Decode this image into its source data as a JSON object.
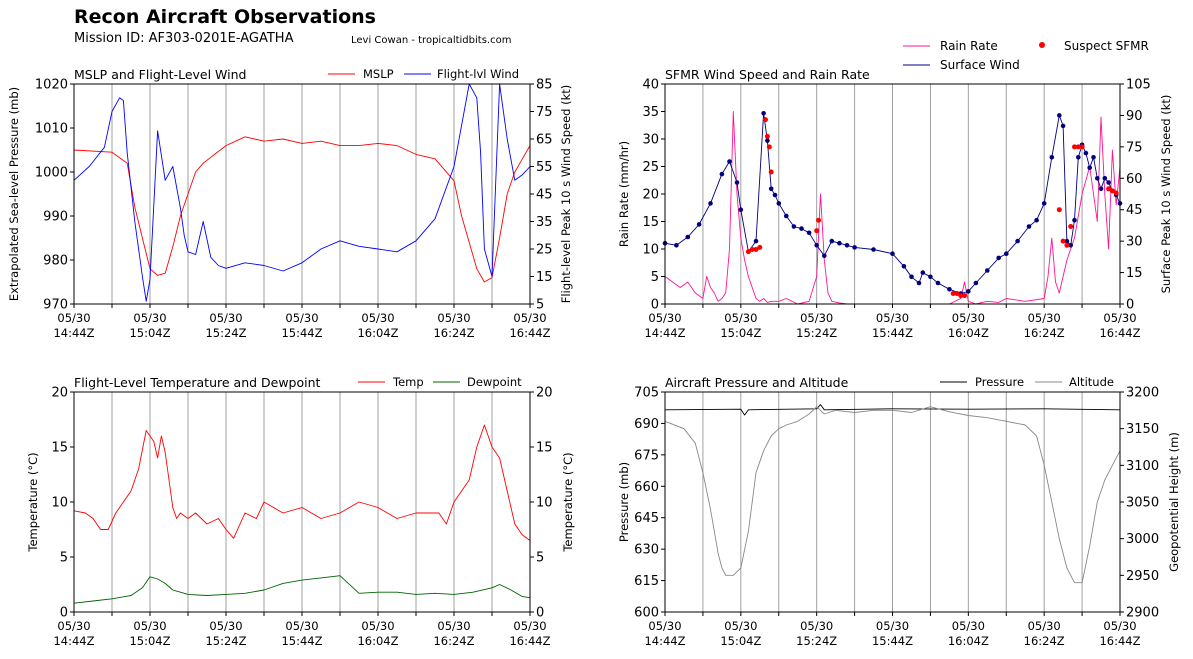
{
  "header": {
    "title": "Recon Aircraft Observations",
    "mission": "Mission ID: AF303-0201E-AGATHA",
    "credit": "Levi Cowan - tropicaltidbits.com"
  },
  "time_ticks": [
    {
      "date": "05/30",
      "time": "14:44Z"
    },
    {
      "date": "05/30",
      "time": "15:04Z"
    },
    {
      "date": "05/30",
      "time": "15:24Z"
    },
    {
      "date": "05/30",
      "time": "15:44Z"
    },
    {
      "date": "05/30",
      "time": "16:04Z"
    },
    {
      "date": "05/30",
      "time": "16:24Z"
    },
    {
      "date": "05/30",
      "time": "16:44Z"
    }
  ],
  "top_legend": {
    "rain": "Rain Rate",
    "surface": "Surface Wind",
    "suspect": "Suspect SFMR"
  },
  "colors": {
    "mslp": "#ff0000",
    "wind": "#0000ff",
    "rain": "#ff1493",
    "surface": "#000080",
    "suspect": "#ff0000",
    "temp": "#ff0000",
    "dewpoint": "#006400",
    "pressure": "#000000",
    "altitude": "#888888",
    "grid": "#a0a0a0"
  },
  "chart_data": [
    {
      "id": "mslp_wind",
      "type": "line",
      "title": "MSLP and Flight-Level Wind",
      "x_range": [
        "14:44Z",
        "16:44Z"
      ],
      "ylabel_left": "Extrapolated Sea-level Pressure (mb)",
      "ylabel_right": "Flight-level Peak 10 s Wind Speed (kt)",
      "ylim_left": [
        970,
        1020
      ],
      "ylim_right": [
        5,
        85
      ],
      "yticks_left": [
        "970",
        "980",
        "990",
        "1000",
        "1010",
        "1020"
      ],
      "yticks_right": [
        "5",
        "15",
        "25",
        "35",
        "45",
        "55",
        "65",
        "75",
        "85"
      ],
      "grid": "vertical",
      "legend": "top-right",
      "series": [
        {
          "name": "MSLP",
          "axis": "left",
          "x": [
            0,
            10,
            14,
            16,
            18,
            20,
            22,
            24,
            26,
            28,
            30,
            32,
            34,
            37,
            40,
            45,
            50,
            55,
            60,
            65,
            70,
            75,
            80,
            85,
            90,
            95,
            100,
            102,
            104,
            106,
            108,
            110,
            112,
            114,
            116,
            118,
            120
          ],
          "y": [
            1005,
            1004.5,
            1002,
            992,
            985,
            978,
            976.5,
            977,
            983,
            990,
            995,
            1000,
            1002,
            1004,
            1006,
            1008,
            1007,
            1007.5,
            1006.5,
            1007,
            1006,
            1006,
            1006.5,
            1006,
            1004,
            1003,
            998,
            990,
            984,
            978,
            975,
            976,
            985,
            995,
            1000,
            1003,
            1006
          ]
        },
        {
          "name": "Flight-lvl Wind",
          "axis": "right",
          "x": [
            0,
            4,
            8,
            10,
            12,
            13,
            14,
            16,
            18,
            19,
            20,
            22,
            24,
            26,
            28,
            29,
            30,
            32,
            34,
            36,
            38,
            40,
            45,
            50,
            55,
            60,
            65,
            70,
            75,
            80,
            85,
            90,
            95,
            100,
            102,
            104,
            106,
            107,
            108,
            110,
            112,
            114,
            116,
            118,
            120
          ],
          "y": [
            50,
            55,
            62,
            75,
            80,
            79,
            60,
            35,
            15,
            6,
            14,
            68,
            50,
            55,
            40,
            30,
            24,
            23,
            35,
            22,
            19,
            18,
            20,
            19,
            17,
            20,
            25,
            28,
            26,
            25,
            24,
            28,
            36,
            55,
            70,
            85,
            80,
            60,
            25,
            15,
            85,
            65,
            50,
            52,
            55
          ]
        }
      ]
    },
    {
      "id": "sfmr",
      "type": "line",
      "title": "SFMR Wind Speed and Rain Rate",
      "x_range": [
        "14:44Z",
        "16:44Z"
      ],
      "ylabel_left": "Rain Rate (mm/hr)",
      "ylabel_right": "Surface Peak 10 s Wind Speed (kt)",
      "ylim_left": [
        0,
        40
      ],
      "ylim_right": [
        0,
        105
      ],
      "yticks_left": [
        "0",
        "5",
        "10",
        "15",
        "20",
        "25",
        "30",
        "35",
        "40"
      ],
      "yticks_right": [
        "0",
        "15",
        "30",
        "45",
        "60",
        "75",
        "90",
        "105"
      ],
      "grid": "vertical",
      "legend": "top-right",
      "series": [
        {
          "name": "Rain Rate",
          "axis": "left",
          "x": [
            0,
            2,
            4,
            6,
            8,
            10,
            11,
            12,
            13,
            14,
            15,
            16,
            17,
            18,
            19,
            20,
            21,
            22,
            23,
            24,
            25,
            26,
            27,
            28,
            30,
            32,
            35,
            38,
            40,
            41,
            42,
            43,
            44,
            46,
            48,
            50,
            55,
            60,
            65,
            70,
            75,
            78,
            79,
            80,
            82,
            85,
            88,
            90,
            95,
            100,
            101,
            102,
            103,
            104,
            106,
            108,
            110,
            112,
            114,
            115,
            116,
            117,
            118,
            119,
            120
          ],
          "y": [
            5,
            4,
            3,
            4,
            2,
            1,
            5,
            3,
            2,
            0.5,
            1,
            2,
            10,
            35,
            20,
            12,
            8,
            5,
            3,
            1,
            0.5,
            1,
            0.3,
            0.5,
            0.5,
            1,
            0,
            0.5,
            5,
            20,
            8,
            2,
            0.5,
            0.2,
            0,
            0,
            0,
            0,
            0,
            0,
            0,
            1,
            4,
            0.5,
            0,
            0.5,
            0.3,
            1,
            0.5,
            1,
            5,
            12,
            4,
            2,
            8,
            12,
            20,
            25,
            15,
            34,
            20,
            10,
            28,
            18,
            25
          ]
        },
        {
          "name": "Surface Wind",
          "axis": "right",
          "x": [
            0,
            3,
            6,
            9,
            12,
            15,
            17,
            19,
            20,
            22,
            24,
            26,
            27,
            28,
            29,
            30,
            32,
            34,
            36,
            38,
            40,
            42,
            44,
            46,
            48,
            50,
            55,
            60,
            63,
            65,
            67,
            68,
            70,
            72,
            75,
            78,
            80,
            82,
            85,
            88,
            90,
            93,
            96,
            98,
            100,
            102,
            104,
            105,
            106,
            107,
            108,
            109,
            110,
            111,
            112,
            113,
            114,
            115,
            116,
            117,
            118,
            119,
            120
          ],
          "y": [
            29,
            28,
            32,
            38,
            48,
            62,
            68,
            58,
            45,
            25,
            30,
            91,
            78,
            55,
            52,
            48,
            42,
            37,
            36,
            34,
            28,
            23,
            30,
            29,
            28,
            27,
            26,
            24,
            18,
            13,
            10,
            15,
            13,
            10,
            7,
            5,
            6,
            10,
            16,
            22,
            24,
            30,
            37,
            40,
            48,
            70,
            90,
            85,
            30,
            28,
            40,
            70,
            76,
            72,
            65,
            70,
            60,
            55,
            60,
            58,
            54,
            52,
            48
          ]
        },
        {
          "name": "Suspect SFMR",
          "axis": "right",
          "x": [
            22,
            23,
            24,
            25,
            26.5,
            27,
            27.5,
            28,
            40,
            40.5,
            76,
            77,
            78,
            79,
            104,
            105,
            106,
            107,
            108,
            109,
            110,
            117,
            118,
            119
          ],
          "y": [
            25,
            26,
            26,
            27,
            88,
            80,
            75,
            63,
            35,
            40,
            5,
            5,
            4,
            4,
            45,
            30,
            28,
            37,
            75,
            75,
            75,
            55,
            54,
            53
          ]
        }
      ]
    },
    {
      "id": "temp_dew",
      "type": "line",
      "title": "Flight-Level Temperature and Dewpoint",
      "x_range": [
        "14:44Z",
        "16:44Z"
      ],
      "ylabel_left": "Temperature (°C)",
      "ylabel_right": "Temperature (°C)",
      "ylim_left": [
        0,
        20
      ],
      "ylim_right": [
        0,
        20
      ],
      "yticks_left": [
        "0",
        "5",
        "10",
        "15",
        "20"
      ],
      "yticks_right": [
        "0",
        "5",
        "10",
        "15",
        "20"
      ],
      "grid": "vertical",
      "legend": "top-right",
      "series": [
        {
          "name": "Temp",
          "axis": "left",
          "x": [
            0,
            3,
            5,
            7,
            9,
            11,
            13,
            15,
            17,
            19,
            21,
            22,
            23,
            24,
            25,
            26,
            27,
            28,
            30,
            32,
            35,
            38,
            40,
            42,
            45,
            48,
            50,
            55,
            60,
            65,
            70,
            75,
            80,
            85,
            90,
            92,
            94,
            96,
            98,
            100,
            102,
            104,
            106,
            108,
            110,
            112,
            114,
            116,
            118,
            120
          ],
          "y": [
            9.2,
            9,
            8.5,
            7.5,
            7.5,
            9,
            10,
            11,
            13,
            16.5,
            15.5,
            14,
            16,
            14.5,
            12,
            9.5,
            8.5,
            9,
            8.5,
            9,
            8,
            8.5,
            7.5,
            6.7,
            9,
            8.5,
            10,
            9,
            9.5,
            8.5,
            9,
            10,
            9.5,
            8.5,
            9,
            9,
            9,
            9,
            8,
            10,
            11,
            12,
            15,
            17,
            15,
            14,
            11,
            8,
            7,
            6.5
          ]
        },
        {
          "name": "Dewpoint",
          "axis": "left",
          "x": [
            0,
            5,
            10,
            15,
            18,
            20,
            22,
            24,
            26,
            28,
            30,
            35,
            40,
            45,
            50,
            55,
            60,
            65,
            70,
            75,
            80,
            85,
            90,
            95,
            100,
            105,
            110,
            112,
            115,
            118,
            120
          ],
          "y": [
            0.8,
            1,
            1.2,
            1.5,
            2.2,
            3.2,
            3,
            2.6,
            2,
            1.8,
            1.6,
            1.5,
            1.6,
            1.7,
            2,
            2.6,
            2.9,
            3.1,
            3.3,
            1.7,
            1.8,
            1.8,
            1.6,
            1.7,
            1.6,
            1.8,
            2.2,
            2.5,
            2,
            1.4,
            1.3
          ]
        }
      ]
    },
    {
      "id": "press_alt",
      "type": "line",
      "title": "Aircraft Pressure and Altitude",
      "x_range": [
        "14:44Z",
        "16:44Z"
      ],
      "ylabel_left": "Pressure (mb)",
      "ylabel_right": "Geopotential Height (m)",
      "ylim_left": [
        600,
        705
      ],
      "ylim_right": [
        2900,
        3200
      ],
      "yticks_left": [
        "600",
        "615",
        "630",
        "645",
        "660",
        "675",
        "690",
        "705"
      ],
      "yticks_right": [
        "2900",
        "2950",
        "3000",
        "3050",
        "3100",
        "3150",
        "3200"
      ],
      "grid": "vertical",
      "legend": "top-right",
      "series": [
        {
          "name": "Pressure",
          "axis": "left",
          "x": [
            0,
            20,
            21,
            22,
            40,
            41,
            42,
            60,
            80,
            100,
            120
          ],
          "y": [
            696.5,
            696.8,
            694,
            696.5,
            697,
            699,
            696.5,
            697,
            696.8,
            697,
            696.5
          ]
        },
        {
          "name": "Altitude",
          "axis": "right",
          "x": [
            0,
            5,
            8,
            10,
            12,
            14,
            15,
            16,
            18,
            20,
            22,
            24,
            26,
            28,
            30,
            32,
            35,
            38,
            40,
            42,
            45,
            50,
            55,
            60,
            65,
            70,
            75,
            80,
            85,
            90,
            95,
            98,
            100,
            102,
            104,
            106,
            108,
            110,
            112,
            114,
            116,
            118,
            120
          ],
          "y": [
            3160,
            3150,
            3130,
            3090,
            3040,
            2980,
            2960,
            2950,
            2950,
            2960,
            3010,
            3090,
            3120,
            3140,
            3150,
            3155,
            3160,
            3170,
            3180,
            3170,
            3175,
            3172,
            3175,
            3175,
            3172,
            3180,
            3173,
            3168,
            3165,
            3160,
            3155,
            3140,
            3100,
            3050,
            3000,
            2960,
            2940,
            2940,
            2990,
            3050,
            3080,
            3100,
            3120
          ]
        }
      ]
    }
  ]
}
